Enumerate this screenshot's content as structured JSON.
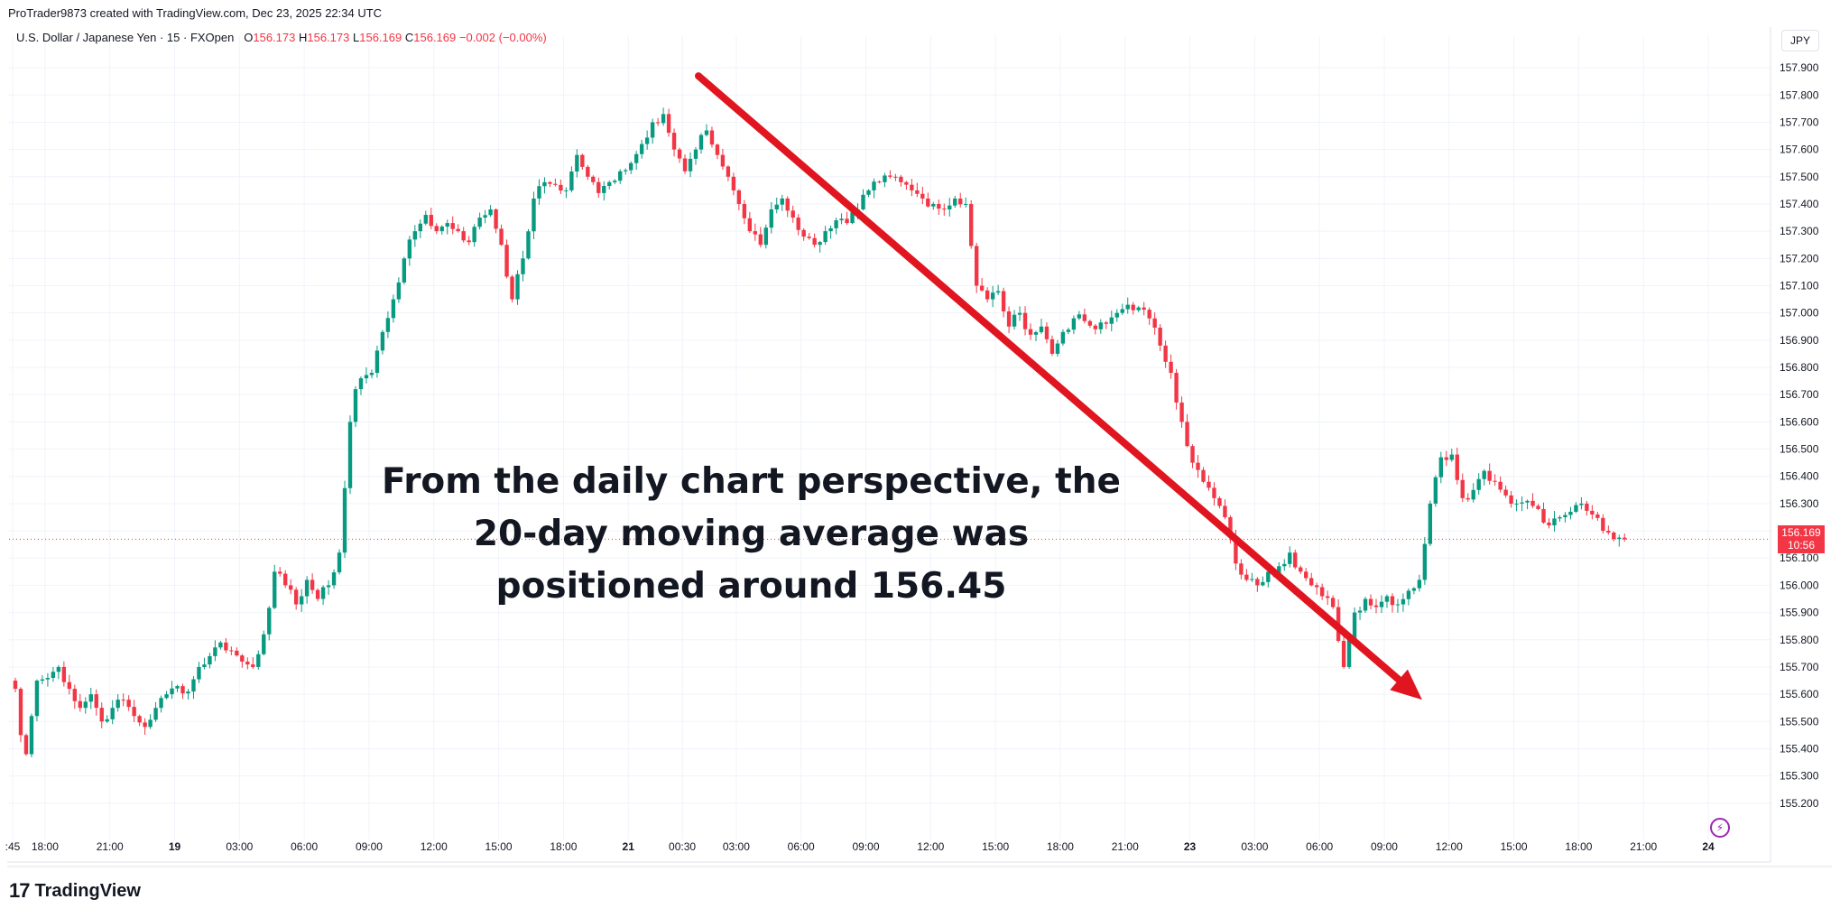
{
  "header": {
    "credit": "ProTrader9873 created with TradingView.com, Dec 23, 2025 22:34 UTC",
    "symbol": "U.S. Dollar / Japanese Yen · 15 · FXOpen",
    "open_label": "O",
    "open_value": "156.173",
    "high_label": "H",
    "high_value": "156.173",
    "low_label": "L",
    "low_value": "156.169",
    "close_label": "C",
    "close_value": "156.169",
    "change": "−0.002 (−0.00%)"
  },
  "currency_button": "JPY",
  "annotation": {
    "line1": "From the daily chart perspective, the",
    "line2": "20-day moving average was",
    "line3": "positioned around 156.45"
  },
  "last_price_tag": {
    "price": "156.169",
    "countdown": "10:56"
  },
  "branding": {
    "name": "TradingView",
    "logo_mark": "17"
  },
  "colors": {
    "up": "#089981",
    "down": "#f23645",
    "arrow": "#e0151f",
    "grid": "#f0f3fa"
  },
  "chart_data": {
    "type": "candlestick",
    "title": "U.S. Dollar / Japanese Yen · 15 · FXOpen",
    "ylim": [
      155.1,
      157.95
    ],
    "y_ticks": [
      "157.900",
      "157.800",
      "157.700",
      "157.600",
      "157.500",
      "157.400",
      "157.300",
      "157.200",
      "157.100",
      "157.000",
      "156.900",
      "156.800",
      "156.700",
      "156.600",
      "156.500",
      "156.400",
      "156.300",
      "156.200",
      "156.100",
      "156.000",
      "155.900",
      "155.800",
      "155.700",
      "155.600",
      "155.500",
      "155.400",
      "155.300",
      "155.200"
    ],
    "x_ticks": [
      ":45",
      "18:00",
      "21:00",
      "19",
      "03:00",
      "06:00",
      "09:00",
      "12:00",
      "15:00",
      "18:00",
      "21",
      "00:30",
      "03:00",
      "06:00",
      "09:00",
      "12:00",
      "15:00",
      "18:00",
      "21:00",
      "23",
      "03:00",
      "06:00",
      "09:00",
      "12:00",
      "15:00",
      "18:00",
      "21:00",
      "24"
    ],
    "x_tick_bold": [
      false,
      false,
      false,
      true,
      false,
      false,
      false,
      false,
      false,
      false,
      true,
      false,
      false,
      false,
      false,
      false,
      false,
      false,
      false,
      true,
      false,
      false,
      false,
      false,
      false,
      false,
      false,
      true
    ],
    "x_tick_bar": [
      0,
      6,
      18,
      30,
      42,
      54,
      66,
      78,
      90,
      102,
      114,
      124,
      134,
      146,
      158,
      170,
      182,
      194,
      206,
      218,
      230,
      242,
      254,
      266,
      278,
      290,
      302,
      314
    ],
    "bars_total": 316,
    "last_price": 156.169,
    "arrow": {
      "from_bar": 127,
      "from_price": 157.87,
      "to_bar": 261,
      "to_price": 155.58
    },
    "anchors": [
      [
        0,
        155.62
      ],
      [
        1,
        155.45
      ],
      [
        2,
        155.38
      ],
      [
        3,
        155.52
      ],
      [
        4,
        155.65
      ],
      [
        6,
        155.66
      ],
      [
        8,
        155.7
      ],
      [
        10,
        155.62
      ],
      [
        12,
        155.55
      ],
      [
        14,
        155.6
      ],
      [
        16,
        155.5
      ],
      [
        18,
        155.55
      ],
      [
        20,
        155.58
      ],
      [
        22,
        155.52
      ],
      [
        24,
        155.48
      ],
      [
        26,
        155.55
      ],
      [
        28,
        155.6
      ],
      [
        30,
        155.63
      ],
      [
        32,
        155.61
      ],
      [
        34,
        155.7
      ],
      [
        36,
        155.74
      ],
      [
        38,
        155.79
      ],
      [
        40,
        155.76
      ],
      [
        42,
        155.72
      ],
      [
        44,
        155.7
      ],
      [
        46,
        155.82
      ],
      [
        48,
        156.05
      ],
      [
        50,
        156.0
      ],
      [
        52,
        155.93
      ],
      [
        54,
        156.02
      ],
      [
        56,
        155.95
      ],
      [
        58,
        156.0
      ],
      [
        60,
        156.12
      ],
      [
        62,
        156.6
      ],
      [
        63,
        156.72
      ],
      [
        64,
        156.76
      ],
      [
        66,
        156.78
      ],
      [
        68,
        156.93
      ],
      [
        70,
        157.05
      ],
      [
        72,
        157.2
      ],
      [
        74,
        157.3
      ],
      [
        76,
        157.36
      ],
      [
        78,
        157.3
      ],
      [
        80,
        157.33
      ],
      [
        82,
        157.3
      ],
      [
        84,
        157.26
      ],
      [
        86,
        157.35
      ],
      [
        88,
        157.38
      ],
      [
        90,
        157.25
      ],
      [
        92,
        157.05
      ],
      [
        94,
        157.2
      ],
      [
        96,
        157.42
      ],
      [
        98,
        157.48
      ],
      [
        100,
        157.47
      ],
      [
        102,
        157.45
      ],
      [
        104,
        157.58
      ],
      [
        106,
        157.5
      ],
      [
        108,
        157.44
      ],
      [
        110,
        157.48
      ],
      [
        112,
        157.52
      ],
      [
        114,
        157.55
      ],
      [
        116,
        157.62
      ],
      [
        118,
        157.7
      ],
      [
        120,
        157.73
      ],
      [
        122,
        157.6
      ],
      [
        124,
        157.52
      ],
      [
        126,
        157.6
      ],
      [
        128,
        157.67
      ],
      [
        130,
        157.58
      ],
      [
        132,
        157.5
      ],
      [
        134,
        157.4
      ],
      [
        136,
        157.3
      ],
      [
        138,
        157.25
      ],
      [
        140,
        157.38
      ],
      [
        142,
        157.42
      ],
      [
        144,
        157.35
      ],
      [
        146,
        157.28
      ],
      [
        148,
        157.25
      ],
      [
        150,
        157.3
      ],
      [
        152,
        157.34
      ],
      [
        154,
        157.33
      ],
      [
        156,
        157.38
      ],
      [
        158,
        157.45
      ],
      [
        160,
        157.48
      ],
      [
        162,
        157.5
      ],
      [
        164,
        157.48
      ],
      [
        166,
        157.45
      ],
      [
        168,
        157.42
      ],
      [
        170,
        157.4
      ],
      [
        172,
        157.38
      ],
      [
        174,
        157.42
      ],
      [
        176,
        157.4
      ],
      [
        178,
        157.1
      ],
      [
        180,
        157.05
      ],
      [
        182,
        157.08
      ],
      [
        184,
        156.95
      ],
      [
        186,
        157.0
      ],
      [
        188,
        156.92
      ],
      [
        190,
        156.95
      ],
      [
        192,
        156.85
      ],
      [
        194,
        156.93
      ],
      [
        196,
        156.98
      ],
      [
        198,
        156.97
      ],
      [
        200,
        156.94
      ],
      [
        202,
        156.96
      ],
      [
        204,
        157.0
      ],
      [
        206,
        157.03
      ],
      [
        208,
        157.02
      ],
      [
        210,
        156.98
      ],
      [
        212,
        156.88
      ],
      [
        214,
        156.78
      ],
      [
        216,
        156.6
      ],
      [
        218,
        156.45
      ],
      [
        220,
        156.38
      ],
      [
        222,
        156.32
      ],
      [
        224,
        156.25
      ],
      [
        226,
        156.08
      ],
      [
        228,
        156.02
      ],
      [
        230,
        156.0
      ],
      [
        232,
        156.05
      ],
      [
        234,
        156.07
      ],
      [
        236,
        156.12
      ],
      [
        238,
        156.05
      ],
      [
        240,
        156.0
      ],
      [
        242,
        155.96
      ],
      [
        244,
        155.92
      ],
      [
        246,
        155.7
      ],
      [
        248,
        155.9
      ],
      [
        250,
        155.95
      ],
      [
        252,
        155.92
      ],
      [
        254,
        155.96
      ],
      [
        256,
        155.93
      ],
      [
        258,
        155.98
      ],
      [
        260,
        156.02
      ],
      [
        262,
        156.3
      ],
      [
        264,
        156.47
      ],
      [
        266,
        156.48
      ],
      [
        268,
        156.32
      ],
      [
        270,
        156.35
      ],
      [
        272,
        156.42
      ],
      [
        274,
        156.38
      ],
      [
        276,
        156.33
      ],
      [
        278,
        156.3
      ],
      [
        280,
        156.31
      ],
      [
        282,
        156.28
      ],
      [
        284,
        156.22
      ],
      [
        286,
        156.25
      ],
      [
        288,
        156.27
      ],
      [
        290,
        156.3
      ],
      [
        292,
        156.26
      ],
      [
        294,
        156.2
      ],
      [
        296,
        156.17
      ],
      [
        298,
        156.169
      ]
    ]
  }
}
